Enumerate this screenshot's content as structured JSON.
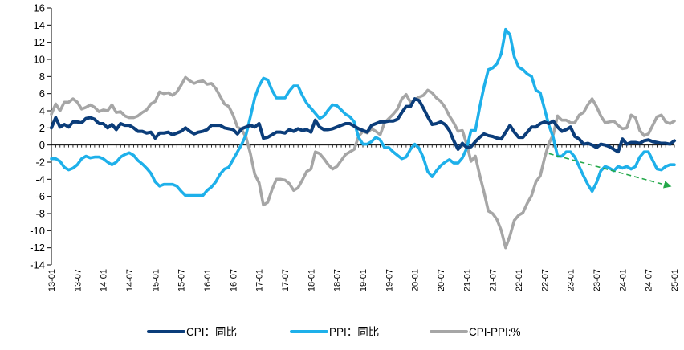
{
  "chart_data": {
    "type": "line",
    "title": "",
    "xlabel": "",
    "ylabel": "",
    "ylim": [
      -14,
      16
    ],
    "yticks": [
      -14,
      -12,
      -10,
      -8,
      -6,
      -4,
      -2,
      0,
      2,
      4,
      6,
      8,
      10,
      12,
      14,
      16
    ],
    "x_start": "2013-01",
    "n_months": 145,
    "x_tick_labels": [
      "13-01",
      "13-07",
      "14-01",
      "14-07",
      "15-01",
      "15-07",
      "16-01",
      "16-07",
      "17-01",
      "17-07",
      "18-01",
      "18-07",
      "19-01",
      "19-07",
      "20-01",
      "20-07",
      "21-01",
      "21-07",
      "22-01",
      "22-07",
      "23-01",
      "23-07",
      "24-01",
      "24-07",
      "25-01"
    ],
    "x_tick_interval_months": 6,
    "legend_position": "bottom",
    "series": [
      {
        "name": "CPI：同比",
        "color": "#0b3d7a",
        "values": [
          2.0,
          3.2,
          2.1,
          2.4,
          2.1,
          2.7,
          2.7,
          2.6,
          3.1,
          3.2,
          3.0,
          2.5,
          2.5,
          2.0,
          2.4,
          1.8,
          2.5,
          2.3,
          2.3,
          2.0,
          1.6,
          1.6,
          1.4,
          1.5,
          0.8,
          1.4,
          1.4,
          1.5,
          1.2,
          1.4,
          1.6,
          2.0,
          1.6,
          1.3,
          1.5,
          1.6,
          1.8,
          2.3,
          2.3,
          2.3,
          2.0,
          1.9,
          1.8,
          1.3,
          1.9,
          2.1,
          2.3,
          2.1,
          2.5,
          0.8,
          0.9,
          1.2,
          1.5,
          1.5,
          1.4,
          1.8,
          1.6,
          1.9,
          1.7,
          1.8,
          1.5,
          2.9,
          2.1,
          1.8,
          1.8,
          1.9,
          2.1,
          2.3,
          2.5,
          2.5,
          2.2,
          1.9,
          1.7,
          1.5,
          2.3,
          2.5,
          2.7,
          2.7,
          2.8,
          2.8,
          3.0,
          3.8,
          4.5,
          4.5,
          5.4,
          5.2,
          4.3,
          3.3,
          2.4,
          2.5,
          2.7,
          2.4,
          1.7,
          0.5,
          -0.5,
          0.2,
          -0.3,
          -0.2,
          0.4,
          0.9,
          1.3,
          1.1,
          1.0,
          0.8,
          0.7,
          1.5,
          2.3,
          1.5,
          0.9,
          0.9,
          1.5,
          2.1,
          2.1,
          2.5,
          2.7,
          2.5,
          2.8,
          2.1,
          1.6,
          1.8,
          2.1,
          1.0,
          0.7,
          0.1,
          0.2,
          0.0,
          -0.3,
          0.1,
          0.0,
          -0.2,
          -0.5,
          -0.8,
          0.7,
          0.1,
          0.3,
          0.3,
          0.2,
          0.5,
          0.6,
          0.4,
          0.3,
          0.2,
          0.2,
          0.1,
          0.5
        ],
        "line_width": 4
      },
      {
        "name": "PPI：同比",
        "color": "#1eb0ea",
        "values": [
          -1.6,
          -1.6,
          -1.9,
          -2.6,
          -2.9,
          -2.7,
          -2.3,
          -1.6,
          -1.3,
          -1.5,
          -1.4,
          -1.4,
          -1.6,
          -2.0,
          -2.3,
          -2.0,
          -1.4,
          -1.1,
          -0.9,
          -1.2,
          -1.8,
          -2.2,
          -2.7,
          -3.3,
          -4.3,
          -4.8,
          -4.6,
          -4.6,
          -4.6,
          -4.8,
          -5.4,
          -5.9,
          -5.9,
          -5.9,
          -5.9,
          -5.9,
          -5.3,
          -4.9,
          -4.3,
          -3.4,
          -2.8,
          -2.6,
          -1.7,
          -0.8,
          0.1,
          1.2,
          3.3,
          5.5,
          6.9,
          7.8,
          7.6,
          6.4,
          5.5,
          5.5,
          5.5,
          6.3,
          6.9,
          6.9,
          5.8,
          4.9,
          4.3,
          3.7,
          3.1,
          3.4,
          4.1,
          4.7,
          4.6,
          4.1,
          3.6,
          3.3,
          2.7,
          0.9,
          0.1,
          0.1,
          0.4,
          0.9,
          0.6,
          -0.3,
          -0.3,
          -0.8,
          -1.2,
          -1.6,
          -1.4,
          -0.5,
          0.1,
          -0.4,
          -1.5,
          -3.1,
          -3.7,
          -3.0,
          -2.4,
          -2.0,
          -1.7,
          -2.1,
          -2.1,
          -1.5,
          -0.4,
          1.7,
          1.7,
          4.4,
          6.8,
          8.8,
          9.0,
          9.5,
          10.7,
          13.5,
          12.9,
          10.3,
          9.1,
          8.8,
          8.3,
          8.0,
          6.4,
          6.1,
          4.2,
          2.3,
          0.9,
          -1.3,
          -1.3,
          -0.8,
          -0.8,
          -1.4,
          -2.5,
          -3.6,
          -4.6,
          -5.4,
          -4.4,
          -3.0,
          -2.5,
          -2.7,
          -3.0,
          -2.5,
          -2.7,
          -2.5,
          -2.8,
          -2.5,
          -1.4,
          -0.8,
          -0.8,
          -1.8,
          -2.8,
          -2.9,
          -2.5,
          -2.3,
          -2.3
        ]
      },
      {
        "name": "CPI-PPI:%",
        "color": "#a6a6a6",
        "values": [
          3.6,
          4.8,
          4.0,
          5.0,
          5.0,
          5.4,
          5.0,
          4.2,
          4.4,
          4.7,
          4.4,
          3.9,
          4.1,
          4.0,
          4.7,
          3.8,
          3.9,
          3.4,
          3.2,
          3.2,
          3.4,
          3.8,
          4.1,
          4.8,
          5.1,
          6.2,
          6.0,
          6.1,
          5.8,
          6.2,
          7.0,
          7.9,
          7.5,
          7.2,
          7.4,
          7.5,
          7.1,
          7.2,
          6.6,
          5.7,
          4.8,
          4.5,
          3.5,
          2.1,
          1.8,
          0.9,
          -1.0,
          -3.4,
          -4.4,
          -7.0,
          -6.7,
          -5.2,
          -4.0,
          -4.0,
          -4.1,
          -4.5,
          -5.3,
          -5.0,
          -4.1,
          -3.1,
          -2.8,
          -0.8,
          -1.0,
          -1.6,
          -2.3,
          -2.8,
          -2.5,
          -1.8,
          -1.1,
          -0.8,
          -0.5,
          1.0,
          1.6,
          1.4,
          1.9,
          1.6,
          1.2,
          2.6,
          3.1,
          3.6,
          4.2,
          5.4,
          5.9,
          5.0,
          5.3,
          5.6,
          5.8,
          6.4,
          6.1,
          5.5,
          5.1,
          4.4,
          3.4,
          2.6,
          1.6,
          1.7,
          0.1,
          -1.9,
          -1.3,
          -3.5,
          -5.5,
          -7.7,
          -8.0,
          -8.7,
          -10.0,
          -12.0,
          -10.6,
          -8.8,
          -8.2,
          -7.9,
          -6.8,
          -5.9,
          -4.3,
          -3.6,
          -1.5,
          0.2,
          1.2,
          3.4,
          2.9,
          2.9,
          2.6,
          2.6,
          3.5,
          3.8,
          4.7,
          5.4,
          4.5,
          3.4,
          2.6,
          2.7,
          2.8,
          2.3,
          1.9,
          2.0,
          3.5,
          3.2,
          1.7,
          1.1,
          1.3,
          2.3,
          3.3,
          3.5,
          2.7,
          2.5,
          2.8
        ]
      }
    ],
    "trend_arrow": {
      "color": "#24a84a",
      "from": [
        115,
        -1.0
      ],
      "to": [
        143,
        -4.8
      ],
      "style": "dashed"
    }
  }
}
